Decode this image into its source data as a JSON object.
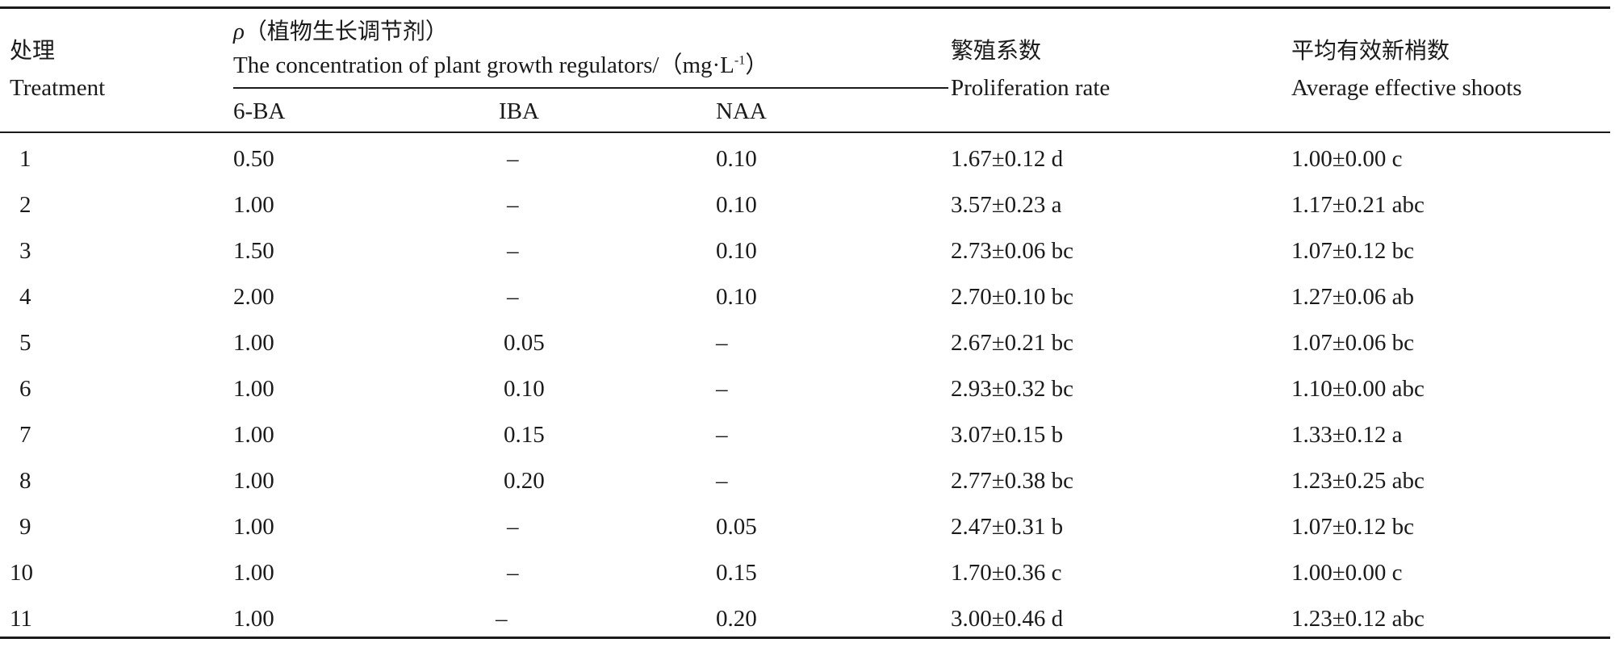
{
  "header": {
    "treatment_zh": "处理",
    "treatment_en": "Treatment",
    "pgr_symbol": "ρ",
    "pgr_zh": "（植物生长调节剂）",
    "pgr_en": "The concentration of plant growth regulators/（mg·L",
    "pgr_unit_sup": "-1",
    "pgr_unit_close": "）",
    "sub_6ba": "6-BA",
    "sub_iba": "IBA",
    "sub_naa": "NAA",
    "proliferation_zh": "繁殖系数",
    "proliferation_en": "Proliferation rate",
    "shoots_zh": "平均有效新梢数",
    "shoots_en": "Average effective shoots"
  },
  "rows": [
    {
      "treatment": "1",
      "ba": "0.50",
      "iba": "–",
      "naa": "0.10",
      "proliferation": "1.67±0.12 d",
      "shoots": "1.00±0.00 c"
    },
    {
      "treatment": "2",
      "ba": "1.00",
      "iba": "–",
      "naa": "0.10",
      "proliferation": "3.57±0.23 a",
      "shoots": "1.17±0.21 abc"
    },
    {
      "treatment": "3",
      "ba": "1.50",
      "iba": "–",
      "naa": "0.10",
      "proliferation": "2.73±0.06 bc",
      "shoots": "1.07±0.12 bc"
    },
    {
      "treatment": "4",
      "ba": "2.00",
      "iba": "–",
      "naa": "0.10",
      "proliferation": "2.70±0.10 bc",
      "shoots": "1.27±0.06 ab"
    },
    {
      "treatment": "5",
      "ba": "1.00",
      "iba": "0.05",
      "naa": "–",
      "proliferation": "2.67±0.21 bc",
      "shoots": "1.07±0.06 bc"
    },
    {
      "treatment": "6",
      "ba": "1.00",
      "iba": "0.10",
      "naa": "–",
      "proliferation": "2.93±0.32 bc",
      "shoots": "1.10±0.00 abc"
    },
    {
      "treatment": "7",
      "ba": "1.00",
      "iba": "0.15",
      "naa": "–",
      "proliferation": "3.07±0.15 b",
      "shoots": "1.33±0.12 a"
    },
    {
      "treatment": "8",
      "ba": "1.00",
      "iba": "0.20",
      "naa": "–",
      "proliferation": "2.77±0.38 bc",
      "shoots": "1.23±0.25 abc"
    },
    {
      "treatment": "9",
      "ba": "1.00",
      "iba": "–",
      "naa": "0.05",
      "proliferation": "2.47±0.31 b",
      "shoots": "1.07±0.12 bc"
    },
    {
      "treatment": "10",
      "ba": "1.00",
      "iba": "–",
      "naa": "0.15",
      "proliferation": "1.70±0.36 c",
      "shoots": "1.00±0.00 c"
    },
    {
      "treatment": "11",
      "ba": "1.00",
      "iba": "–",
      "naa": "0.20",
      "proliferation": "3.00±0.46 d",
      "shoots": "1.23±0.12 abc"
    }
  ]
}
